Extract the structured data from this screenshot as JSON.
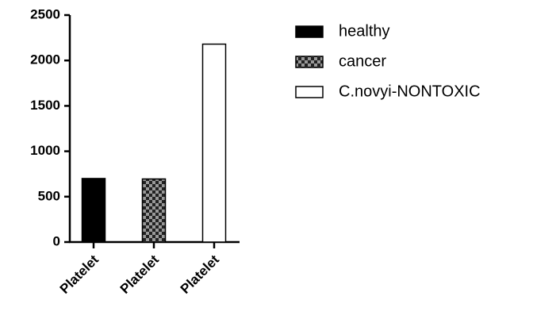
{
  "chart_data": {
    "type": "bar",
    "categories": [
      "Platelet",
      "Platelet",
      "Platelet"
    ],
    "series": [
      {
        "name": "healthy",
        "color": "#000000",
        "values": [
          700,
          null,
          null
        ]
      },
      {
        "name": "cancer",
        "color": "checkered",
        "values": [
          null,
          695,
          null
        ]
      },
      {
        "name": "C.novyi-NONTOXIC",
        "color": "#ffffff",
        "values": [
          null,
          null,
          2180
        ]
      }
    ],
    "ylim": [
      0,
      2500
    ],
    "yticks": [
      0,
      500,
      1000,
      1500,
      2000,
      2500
    ],
    "grid": false,
    "legend": "right"
  }
}
